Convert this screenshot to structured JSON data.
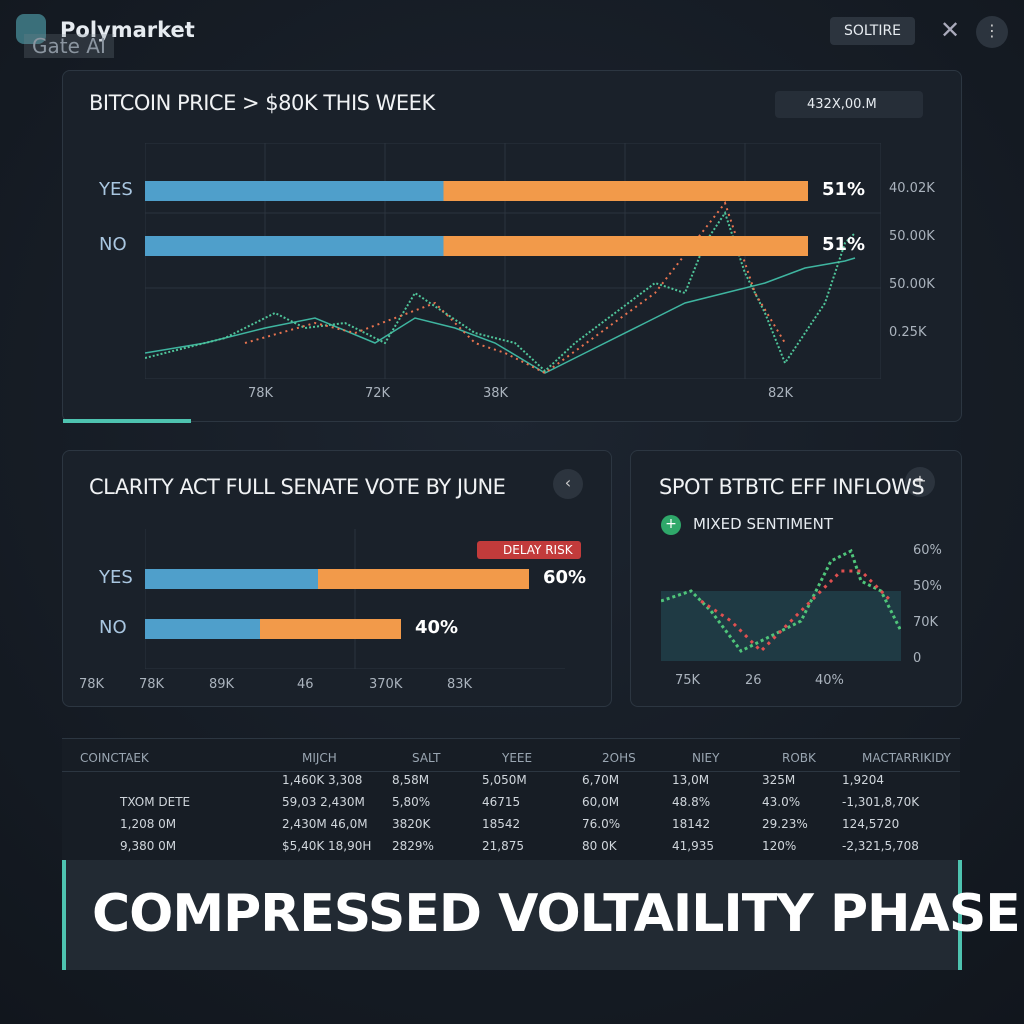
{
  "header": {
    "brand": "Polymarket",
    "watermark": "Gate AI",
    "button": "SOLTIRE"
  },
  "market1": {
    "title": "BITCOIN PRICE > $80K THIS WEEK",
    "badge": "432X,00.M",
    "outcomes": [
      {
        "label": "YES",
        "value": 51,
        "value_label": "51%"
      },
      {
        "label": "NO",
        "value": 51,
        "value_label": "51%"
      }
    ],
    "xlabels": [
      "78K",
      "72K",
      "38K",
      "82K"
    ],
    "ylabels": [
      "40.02K",
      "50.00K",
      "50.00K",
      "0.25K"
    ]
  },
  "market2": {
    "title": "CLARITY ACT FULL SENATE VOTE BY JUNE",
    "tag": "DELAY RISK",
    "outcomes": [
      {
        "label": "YES",
        "value": 60,
        "value_label": "60%"
      },
      {
        "label": "NO",
        "value": 40,
        "value_label": "40%"
      }
    ],
    "xlabels": [
      "78K",
      "78K",
      "89K",
      "46",
      "370K",
      "83K"
    ]
  },
  "market3": {
    "title": "SPOT BTBTC EFF INFLOWS",
    "sentiment": "MIXED SENTIMENT",
    "ylabels": [
      "60%",
      "50%",
      "70K",
      "0"
    ],
    "xlabels": [
      "75K",
      "26",
      "40%"
    ]
  },
  "table": {
    "headers": [
      "COINCTAEK",
      "MIJCH",
      "SALT",
      "YEEE",
      "2OHS",
      "NIEY",
      "ROBK",
      "MACTARRIKIDY"
    ],
    "rows": [
      [
        "",
        "1,460K 3,308",
        "8,58M",
        "5,050M",
        "6,70M",
        "13,0M",
        "325M",
        "1,9204"
      ],
      [
        "TXOM DETE",
        "59,03 2,430M",
        "5,80%",
        "46715",
        "60,0M",
        "48.8%",
        "43.0%",
        "-1,301,8,70K"
      ],
      [
        "1,208 0M",
        "2,430M 46,0M",
        "3820K",
        "18542",
        "76.0%",
        "18142",
        "29.23%",
        "124,5720"
      ],
      [
        "9,380 0M",
        "$5,40K 18,90H",
        "2829%",
        "21,875",
        "80 0K",
        "41,935",
        "120%",
        "-2,321,5,708"
      ]
    ]
  },
  "banner": "COMPRESSED VOLTAILITY PHASE"
}
